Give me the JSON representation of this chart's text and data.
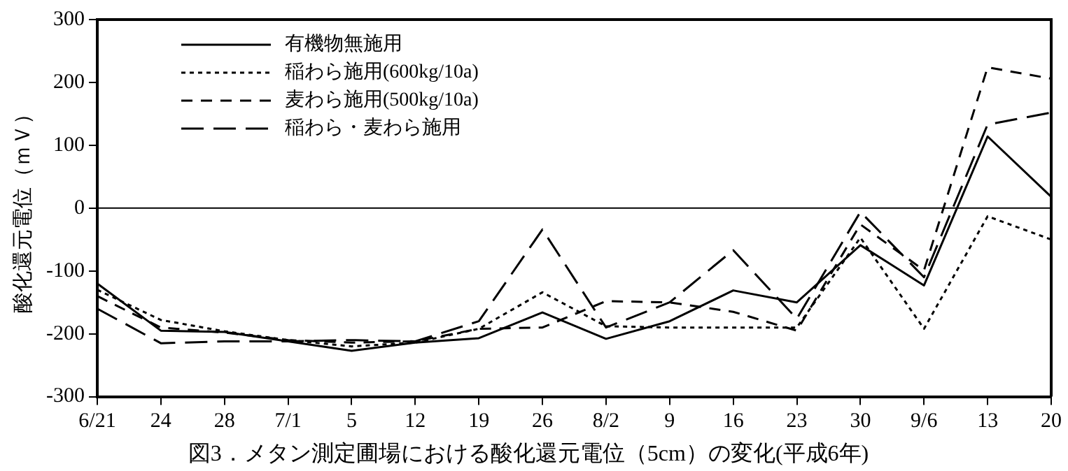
{
  "chart_data": {
    "type": "line",
    "title": "図3．メタン測定圃場における酸化還元電位（5cm）の変化(平成6年)",
    "ylabel": "酸化還元電位（ｍＶ）",
    "categories": [
      "6/21",
      "24",
      "28",
      "7/1",
      "5",
      "12",
      "19",
      "26",
      "8/2",
      "9",
      "16",
      "23",
      "30",
      "9/6",
      "13",
      "20"
    ],
    "series": [
      {
        "name": "有機物無施用",
        "color": "#000000",
        "line_style": "solid",
        "values": [
          -120,
          -195,
          -197,
          -212,
          -227,
          -214,
          -207,
          -166,
          -208,
          -180,
          -131,
          -150,
          -59,
          -123,
          114,
          18
        ]
      },
      {
        "name": "稲わら施用(600kg/10a)",
        "color": "#000000",
        "line_style": "dotted",
        "values": [
          -130,
          -178,
          -196,
          -210,
          -220,
          -214,
          -192,
          -134,
          -188,
          -190,
          -190,
          -190,
          -47,
          -192,
          -13,
          -50
        ]
      },
      {
        "name": "麦わら施用(500kg/10a)",
        "color": "#000000",
        "line_style": "dashed",
        "values": [
          -140,
          -190,
          -198,
          -210,
          -214,
          -212,
          -192,
          -190,
          -148,
          -150,
          -165,
          -195,
          -26,
          -99,
          224,
          206
        ]
      },
      {
        "name": "稲わら・麦わら施用",
        "color": "#000000",
        "line_style": "longdash",
        "values": [
          -160,
          -215,
          -212,
          -212,
          -210,
          -212,
          -180,
          -34,
          -190,
          -150,
          -67,
          -176,
          -6,
          -110,
          133,
          152
        ]
      }
    ],
    "ylim": [
      -300,
      300
    ],
    "yticks": [
      -300,
      -200,
      -100,
      0,
      100,
      200,
      300
    ],
    "ref_lines": [
      {
        "axis": "y",
        "value": 0,
        "color": "#000000"
      }
    ],
    "grid": false,
    "legend": "top left",
    "marker": "none"
  }
}
